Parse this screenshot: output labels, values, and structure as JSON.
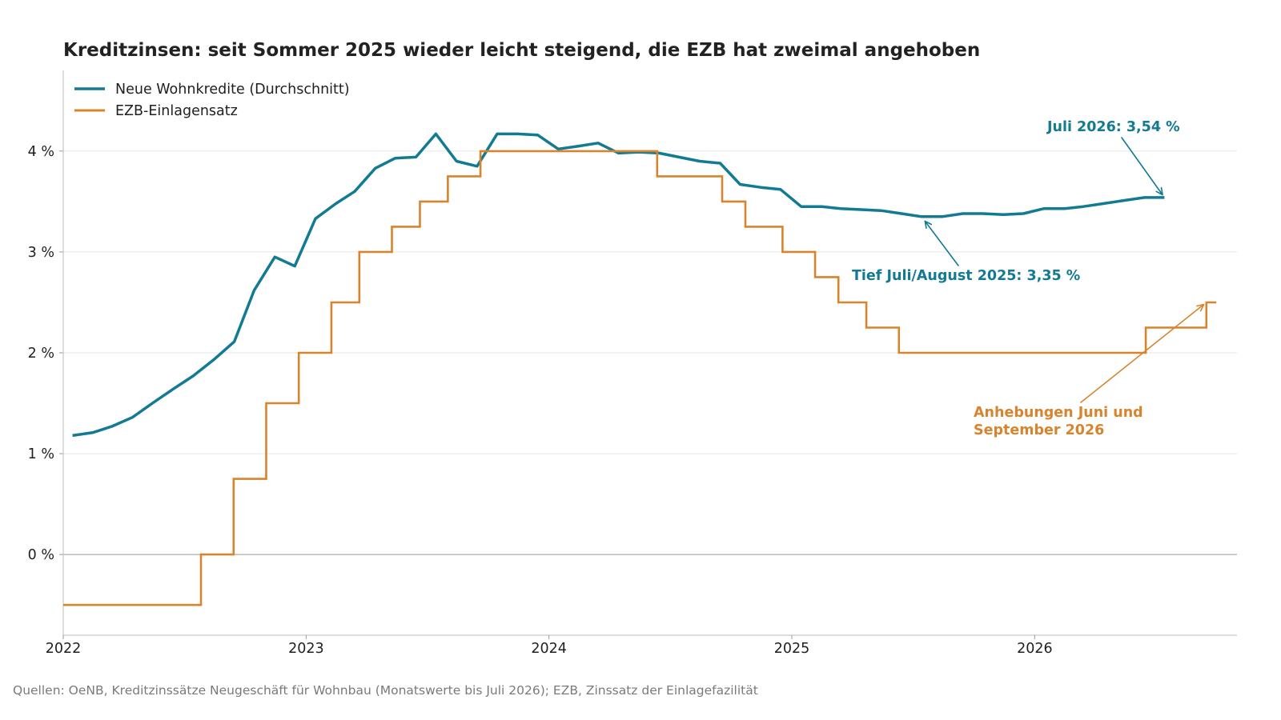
{
  "chart_data": {
    "type": "line",
    "title": "Kreditzinsen: seit Sommer 2025 wieder leicht steigend, die EZB hat zweimal angehoben",
    "xlabel": "",
    "ylabel": "",
    "x_scale": "date",
    "xlim": [
      "2022-01-01",
      "2026-11-01"
    ],
    "ylim": [
      -0.8,
      4.8
    ],
    "xticks": [
      {
        "value": "2022-01-01",
        "label": "2022"
      },
      {
        "value": "2023-01-01",
        "label": "2023"
      },
      {
        "value": "2024-01-01",
        "label": "2024"
      },
      {
        "value": "2025-01-01",
        "label": "2025"
      },
      {
        "value": "2026-01-01",
        "label": "2026"
      }
    ],
    "yticks": [
      {
        "value": 0,
        "label": "0 %"
      },
      {
        "value": 1,
        "label": "1 %"
      },
      {
        "value": 2,
        "label": "2 %"
      },
      {
        "value": 3,
        "label": "3 %"
      },
      {
        "value": 4,
        "label": "4 %"
      }
    ],
    "grid": {
      "horizontal": true,
      "vertical": false
    },
    "zero_line": true,
    "legend": {
      "placement": "top-left"
    },
    "series": [
      {
        "name": "Neue Wohnkredite (Durchschnitt)",
        "style": "line",
        "color": "#137a93",
        "x": [
          "2022-01",
          "2022-02",
          "2022-03",
          "2022-04",
          "2022-05",
          "2022-06",
          "2022-07",
          "2022-08",
          "2022-09",
          "2022-10",
          "2022-11",
          "2022-12",
          "2023-01",
          "2023-02",
          "2023-03",
          "2023-04",
          "2023-05",
          "2023-06",
          "2023-07",
          "2023-08",
          "2023-09",
          "2023-10",
          "2023-11",
          "2023-12",
          "2024-01",
          "2024-02",
          "2024-03",
          "2024-04",
          "2024-05",
          "2024-06",
          "2024-07",
          "2024-08",
          "2024-09",
          "2024-10",
          "2024-11",
          "2024-12",
          "2025-01",
          "2025-02",
          "2025-03",
          "2025-04",
          "2025-05",
          "2025-06",
          "2025-07",
          "2025-08",
          "2025-09",
          "2025-10",
          "2025-11",
          "2025-12",
          "2026-01",
          "2026-02",
          "2026-03",
          "2026-04",
          "2026-05",
          "2026-06",
          "2026-07"
        ],
        "y": [
          1.18,
          1.21,
          1.27,
          1.36,
          1.5,
          1.64,
          1.77,
          1.93,
          2.11,
          2.62,
          2.95,
          2.86,
          3.33,
          3.48,
          3.6,
          3.83,
          3.93,
          3.94,
          4.17,
          3.9,
          3.85,
          4.17,
          4.17,
          4.16,
          4.02,
          4.05,
          4.08,
          3.98,
          3.99,
          3.98,
          3.94,
          3.9,
          3.88,
          3.67,
          3.64,
          3.62,
          3.45,
          3.45,
          3.43,
          3.42,
          3.41,
          3.38,
          3.35,
          3.35,
          3.38,
          3.38,
          3.37,
          3.38,
          3.43,
          3.43,
          3.45,
          3.48,
          3.51,
          3.54,
          3.54
        ]
      },
      {
        "name": "EZB-Einlagensatz",
        "style": "step",
        "color": "#d8842e",
        "x": [
          "2022-01-01",
          "2022-07-27",
          "2022-09-14",
          "2022-11-02",
          "2022-12-21",
          "2023-02-08",
          "2023-03-22",
          "2023-05-10",
          "2023-06-21",
          "2023-08-02",
          "2023-09-20",
          "2024-06-12",
          "2024-09-18",
          "2024-10-23",
          "2024-12-18",
          "2025-02-05",
          "2025-03-12",
          "2025-04-23",
          "2025-06-11",
          "2026-06-17",
          "2026-09-16",
          "2026-10-01"
        ],
        "y": [
          -0.5,
          0.0,
          0.75,
          1.5,
          2.0,
          2.5,
          3.0,
          3.25,
          3.5,
          3.75,
          4.0,
          3.75,
          3.5,
          3.25,
          3.0,
          2.75,
          2.5,
          2.25,
          2.0,
          2.25,
          2.5,
          2.5
        ]
      }
    ],
    "annotations": [
      {
        "lines": [
          "Juli 2026: 3,54 %"
        ],
        "color": "#137a93",
        "x": "2026-07",
        "y": 3.54
      },
      {
        "lines": [
          "Tief Juli/August 2025: 3,35 %"
        ],
        "color": "#137a93",
        "x": "2025-07",
        "y": 3.35
      },
      {
        "lines": [
          "Anhebungen Juni und",
          "September 2026"
        ],
        "color": "#d8842e",
        "x": "2026-09-16",
        "y": 2.5
      }
    ],
    "source": "Quellen: OeNB, Kreditzinssätze Neugeschäft für Wohnbau (Monatswerte bis Juli 2026); EZB, Zinssatz der Einlagefazilität"
  },
  "colors": {
    "grid": "#e6e6e6",
    "axis": "#bdbdbd",
    "zero_line": "#9a9a9a",
    "tick_mark": "#9a9a9a"
  }
}
